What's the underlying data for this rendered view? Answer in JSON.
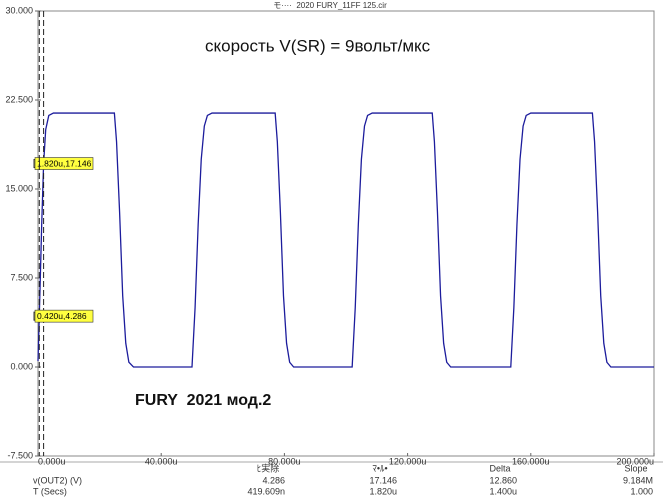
{
  "window_title": "モ····  2020 FURY_11FF 125.cir",
  "chart_data": {
    "type": "line",
    "annotations": [
      "скорость V(SR) = 9вольт/мкс",
      "FURY  2021 мод.2"
    ],
    "series": [
      {
        "color": "#1c1c9c",
        "x": [
          0,
          0.42,
          0.8,
          1.2,
          1.82,
          2.5,
          3.5,
          5,
          24.8,
          25.5,
          26.5,
          27.5,
          28.5,
          29.5,
          31,
          50,
          51,
          52,
          53,
          54,
          55,
          56.5,
          77,
          77.7,
          78.7,
          79.7,
          80.7,
          81.7,
          83,
          102,
          103,
          104,
          105,
          106,
          107,
          108.5,
          128,
          128.7,
          129.7,
          130.7,
          131.7,
          132.7,
          134,
          153.5,
          154.5,
          155.5,
          156.5,
          157.5,
          158.5,
          160,
          180,
          180.7,
          181.7,
          182.7,
          183.7,
          184.7,
          186,
          200
        ],
        "values": [
          0.5,
          4.286,
          8,
          12,
          17.146,
          20,
          21.2,
          21.4,
          21.4,
          19,
          13,
          6,
          2,
          0.4,
          0,
          0,
          5,
          12,
          17.5,
          20.3,
          21.2,
          21.4,
          21.4,
          19,
          13,
          6,
          2,
          0.4,
          0,
          0,
          5,
          12,
          17.5,
          20.3,
          21.2,
          21.4,
          21.4,
          19,
          13,
          6,
          2,
          0.4,
          0,
          0,
          5,
          12,
          17.5,
          20.3,
          21.2,
          21.4,
          21.4,
          19,
          13,
          6,
          2,
          0.4,
          0,
          0
        ]
      }
    ],
    "cursors": [
      {
        "x": 1.82,
        "y": 17.146,
        "label": "1.820u,17.146"
      },
      {
        "x": 0.42,
        "y": 4.286,
        "label": "0.420u,4.286"
      }
    ],
    "xlim": [
      0,
      200
    ],
    "xticks": [
      {
        "value": 0,
        "label": "0.000u"
      },
      {
        "value": 40,
        "label": "40.000u"
      },
      {
        "value": 80,
        "label": "80.000u"
      },
      {
        "value": 120,
        "label": "120.000u"
      },
      {
        "value": 160,
        "label": "160.000u"
      },
      {
        "value": 200,
        "label": "200.000u"
      }
    ],
    "ylim": [
      -7.5,
      30
    ],
    "yticks": [
      {
        "value": -7.5,
        "label": "-7.500"
      },
      {
        "value": 0,
        "label": "0.000"
      },
      {
        "value": 7.5,
        "label": "7.500"
      },
      {
        "value": 15,
        "label": "15.000"
      },
      {
        "value": 22.5,
        "label": "22.500"
      },
      {
        "value": 30,
        "label": "30.000"
      }
    ]
  },
  "readout": {
    "header": [
      "ﾋ実除",
      "ﾏ•ﾙ•",
      "Delta",
      "Slope"
    ],
    "rows": [
      {
        "label": "v(OUT2) (V)",
        "cells": [
          "4.286",
          "17.146",
          "12.860",
          "9.184M"
        ]
      },
      {
        "label": "T (Secs)",
        "cells": [
          "419.609n",
          "1.820u",
          "1.400u",
          "1.000"
        ]
      }
    ]
  }
}
